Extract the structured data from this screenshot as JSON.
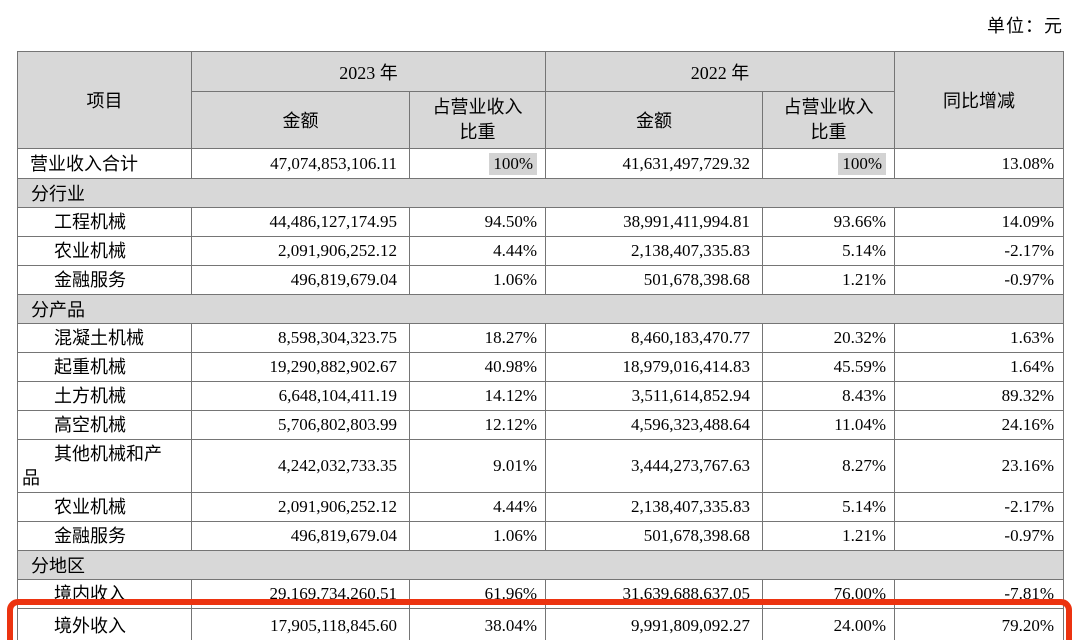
{
  "unit_label": "单位：元",
  "highlight_box": {
    "color": "#ec3310"
  },
  "table": {
    "header": {
      "item": "项目",
      "year_2023": "2023 年",
      "year_2022": "2022 年",
      "amount_label": "金额",
      "ratio_label": "占营业收入\n比重",
      "yoy_label": "同比增减"
    },
    "rows": [
      {
        "type": "data",
        "label": "营业收入合计",
        "indent": false,
        "amount_2023": "47,074,853,106.11",
        "ratio_2023": "100%",
        "ratio_2023_highlight": true,
        "amount_2022": "41,631,497,729.32",
        "ratio_2022": "100%",
        "ratio_2022_highlight": true,
        "yoy": "13.08%"
      },
      {
        "type": "section",
        "label": "分行业"
      },
      {
        "type": "data",
        "label": "工程机械",
        "indent": true,
        "amount_2023": "44,486,127,174.95",
        "ratio_2023": "94.50%",
        "amount_2022": "38,991,411,994.81",
        "ratio_2022": "93.66%",
        "yoy": "14.09%"
      },
      {
        "type": "data",
        "label": "农业机械",
        "indent": true,
        "amount_2023": "2,091,906,252.12",
        "ratio_2023": "4.44%",
        "amount_2022": "2,138,407,335.83",
        "ratio_2022": "5.14%",
        "yoy": "-2.17%"
      },
      {
        "type": "data",
        "label": "金融服务",
        "indent": true,
        "amount_2023": "496,819,679.04",
        "ratio_2023": "1.06%",
        "amount_2022": "501,678,398.68",
        "ratio_2022": "1.21%",
        "yoy": "-0.97%"
      },
      {
        "type": "section",
        "label": "分产品"
      },
      {
        "type": "data",
        "label": "混凝土机械",
        "indent": true,
        "amount_2023": "8,598,304,323.75",
        "ratio_2023": "18.27%",
        "amount_2022": "8,460,183,470.77",
        "ratio_2022": "20.32%",
        "yoy": "1.63%"
      },
      {
        "type": "data",
        "label": "起重机械",
        "indent": true,
        "amount_2023": "19,290,882,902.67",
        "ratio_2023": "40.98%",
        "amount_2022": "18,979,016,414.83",
        "ratio_2022": "45.59%",
        "yoy": "1.64%"
      },
      {
        "type": "data",
        "label": "土方机械",
        "indent": true,
        "amount_2023": "6,648,104,411.19",
        "ratio_2023": "14.12%",
        "amount_2022": "3,511,614,852.94",
        "ratio_2022": "8.43%",
        "yoy": "89.32%"
      },
      {
        "type": "data",
        "label": "高空机械",
        "indent": true,
        "amount_2023": "5,706,802,803.99",
        "ratio_2023": "12.12%",
        "amount_2022": "4,596,323,488.64",
        "ratio_2022": "11.04%",
        "yoy": "24.16%"
      },
      {
        "type": "data",
        "label": "其他机械和产品",
        "indent": true,
        "wrap_at": 6,
        "amount_2023": "4,242,032,733.35",
        "ratio_2023": "9.01%",
        "amount_2022": "3,444,273,767.63",
        "ratio_2022": "8.27%",
        "yoy": "23.16%"
      },
      {
        "type": "data",
        "label": "农业机械",
        "indent": true,
        "amount_2023": "2,091,906,252.12",
        "ratio_2023": "4.44%",
        "amount_2022": "2,138,407,335.83",
        "ratio_2022": "5.14%",
        "yoy": "-2.17%"
      },
      {
        "type": "data",
        "label": "金融服务",
        "indent": true,
        "amount_2023": "496,819,679.04",
        "ratio_2023": "1.06%",
        "amount_2022": "501,678,398.68",
        "ratio_2022": "1.21%",
        "yoy": "-0.97%"
      },
      {
        "type": "section",
        "label": "分地区"
      },
      {
        "type": "data",
        "label": "境内收入",
        "indent": true,
        "amount_2023": "29,169,734,260.51",
        "ratio_2023": "61.96%",
        "amount_2022": "31,639,688,637.05",
        "ratio_2022": "76.00%",
        "yoy": "-7.81%"
      },
      {
        "type": "data",
        "label": "境外收入",
        "indent": true,
        "boxed": true,
        "amount_2023": "17,905,118,845.60",
        "ratio_2023": "38.04%",
        "amount_2022": "9,991,809,092.27",
        "ratio_2022": "24.00%",
        "yoy": "79.20%"
      }
    ]
  }
}
